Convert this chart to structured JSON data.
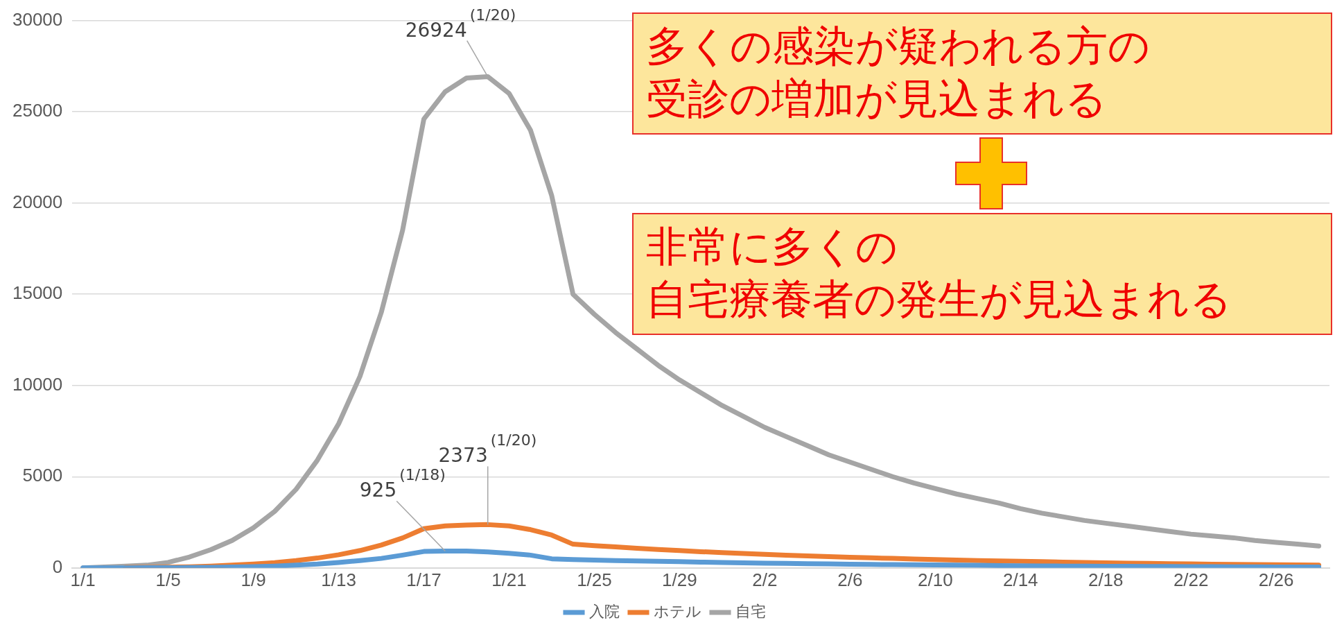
{
  "chart_data": {
    "type": "line",
    "categories": [
      "1/1",
      null,
      null,
      null,
      "1/5",
      null,
      null,
      null,
      "1/9",
      null,
      null,
      null,
      "1/13",
      null,
      null,
      null,
      "1/17",
      null,
      null,
      null,
      "1/21",
      null,
      null,
      null,
      "1/25",
      null,
      null,
      null,
      "1/29",
      null,
      null,
      null,
      "2/2",
      null,
      null,
      null,
      "2/6",
      null,
      null,
      null,
      "2/10",
      null,
      null,
      null,
      "2/14",
      null,
      null,
      null,
      "2/18",
      null,
      null,
      null,
      "2/22",
      null,
      null,
      null,
      "2/26",
      null,
      null
    ],
    "ylim": [
      0,
      30000
    ],
    "yticks": [
      0,
      5000,
      10000,
      15000,
      20000,
      25000,
      30000
    ],
    "grid": "y",
    "legend": "bottom",
    "marker": "none",
    "line_style": "solid",
    "series": [
      {
        "name": "入院",
        "color": "#5b9bd5",
        "values": [
          0,
          0,
          0,
          10,
          10,
          20,
          30,
          50,
          70,
          100,
          150,
          210,
          300,
          400,
          520,
          700,
          900,
          925,
          920,
          880,
          800,
          700,
          500,
          460,
          430,
          400,
          380,
          360,
          340,
          320,
          300,
          280,
          260,
          250,
          230,
          220,
          200,
          190,
          180,
          170,
          160,
          150,
          140,
          130,
          120,
          110,
          100,
          100,
          90,
          90,
          80,
          80,
          70,
          70,
          60,
          60,
          50,
          50,
          50
        ]
      },
      {
        "name": "ホテル",
        "color": "#ed7d31",
        "values": [
          null,
          null,
          20,
          30,
          40,
          60,
          100,
          150,
          210,
          290,
          400,
          540,
          720,
          950,
          1250,
          1640,
          2150,
          2300,
          2350,
          2373,
          2300,
          2100,
          1800,
          1300,
          1220,
          1150,
          1080,
          1010,
          950,
          890,
          840,
          790,
          740,
          700,
          660,
          620,
          580,
          550,
          520,
          490,
          460,
          430,
          400,
          380,
          360,
          340,
          320,
          300,
          280,
          260,
          250,
          230,
          220,
          200,
          190,
          180,
          170,
          160,
          150
        ]
      },
      {
        "name": "自宅",
        "color": "#a5a5a5",
        "values": [
          0,
          50,
          100,
          150,
          300,
          600,
          1000,
          1500,
          2200,
          3100,
          4300,
          5900,
          7900,
          10500,
          14000,
          18500,
          24600,
          26100,
          26850,
          26924,
          26000,
          24000,
          20400,
          15000,
          13900,
          12900,
          12000,
          11100,
          10300,
          9600,
          8900,
          8300,
          7700,
          7200,
          6700,
          6200,
          5800,
          5400,
          5000,
          4650,
          4350,
          4050,
          3800,
          3550,
          3250,
          3000,
          2800,
          2600,
          2450,
          2300,
          2150,
          2000,
          1850,
          1750,
          1650,
          1500,
          1400,
          1300,
          1200
        ]
      }
    ],
    "annotations": [
      {
        "text": "26924 (1/20)",
        "y": 26924
      },
      {
        "text": "2373 (1/20)",
        "y": 2373
      },
      {
        "text": "925 (1/18)",
        "y": 925
      },
      "多くの感染が疑われる方の",
      "受診の増加が見込まれる",
      "非常に多くの",
      "自宅療養者の発生が見込まれる"
    ]
  }
}
